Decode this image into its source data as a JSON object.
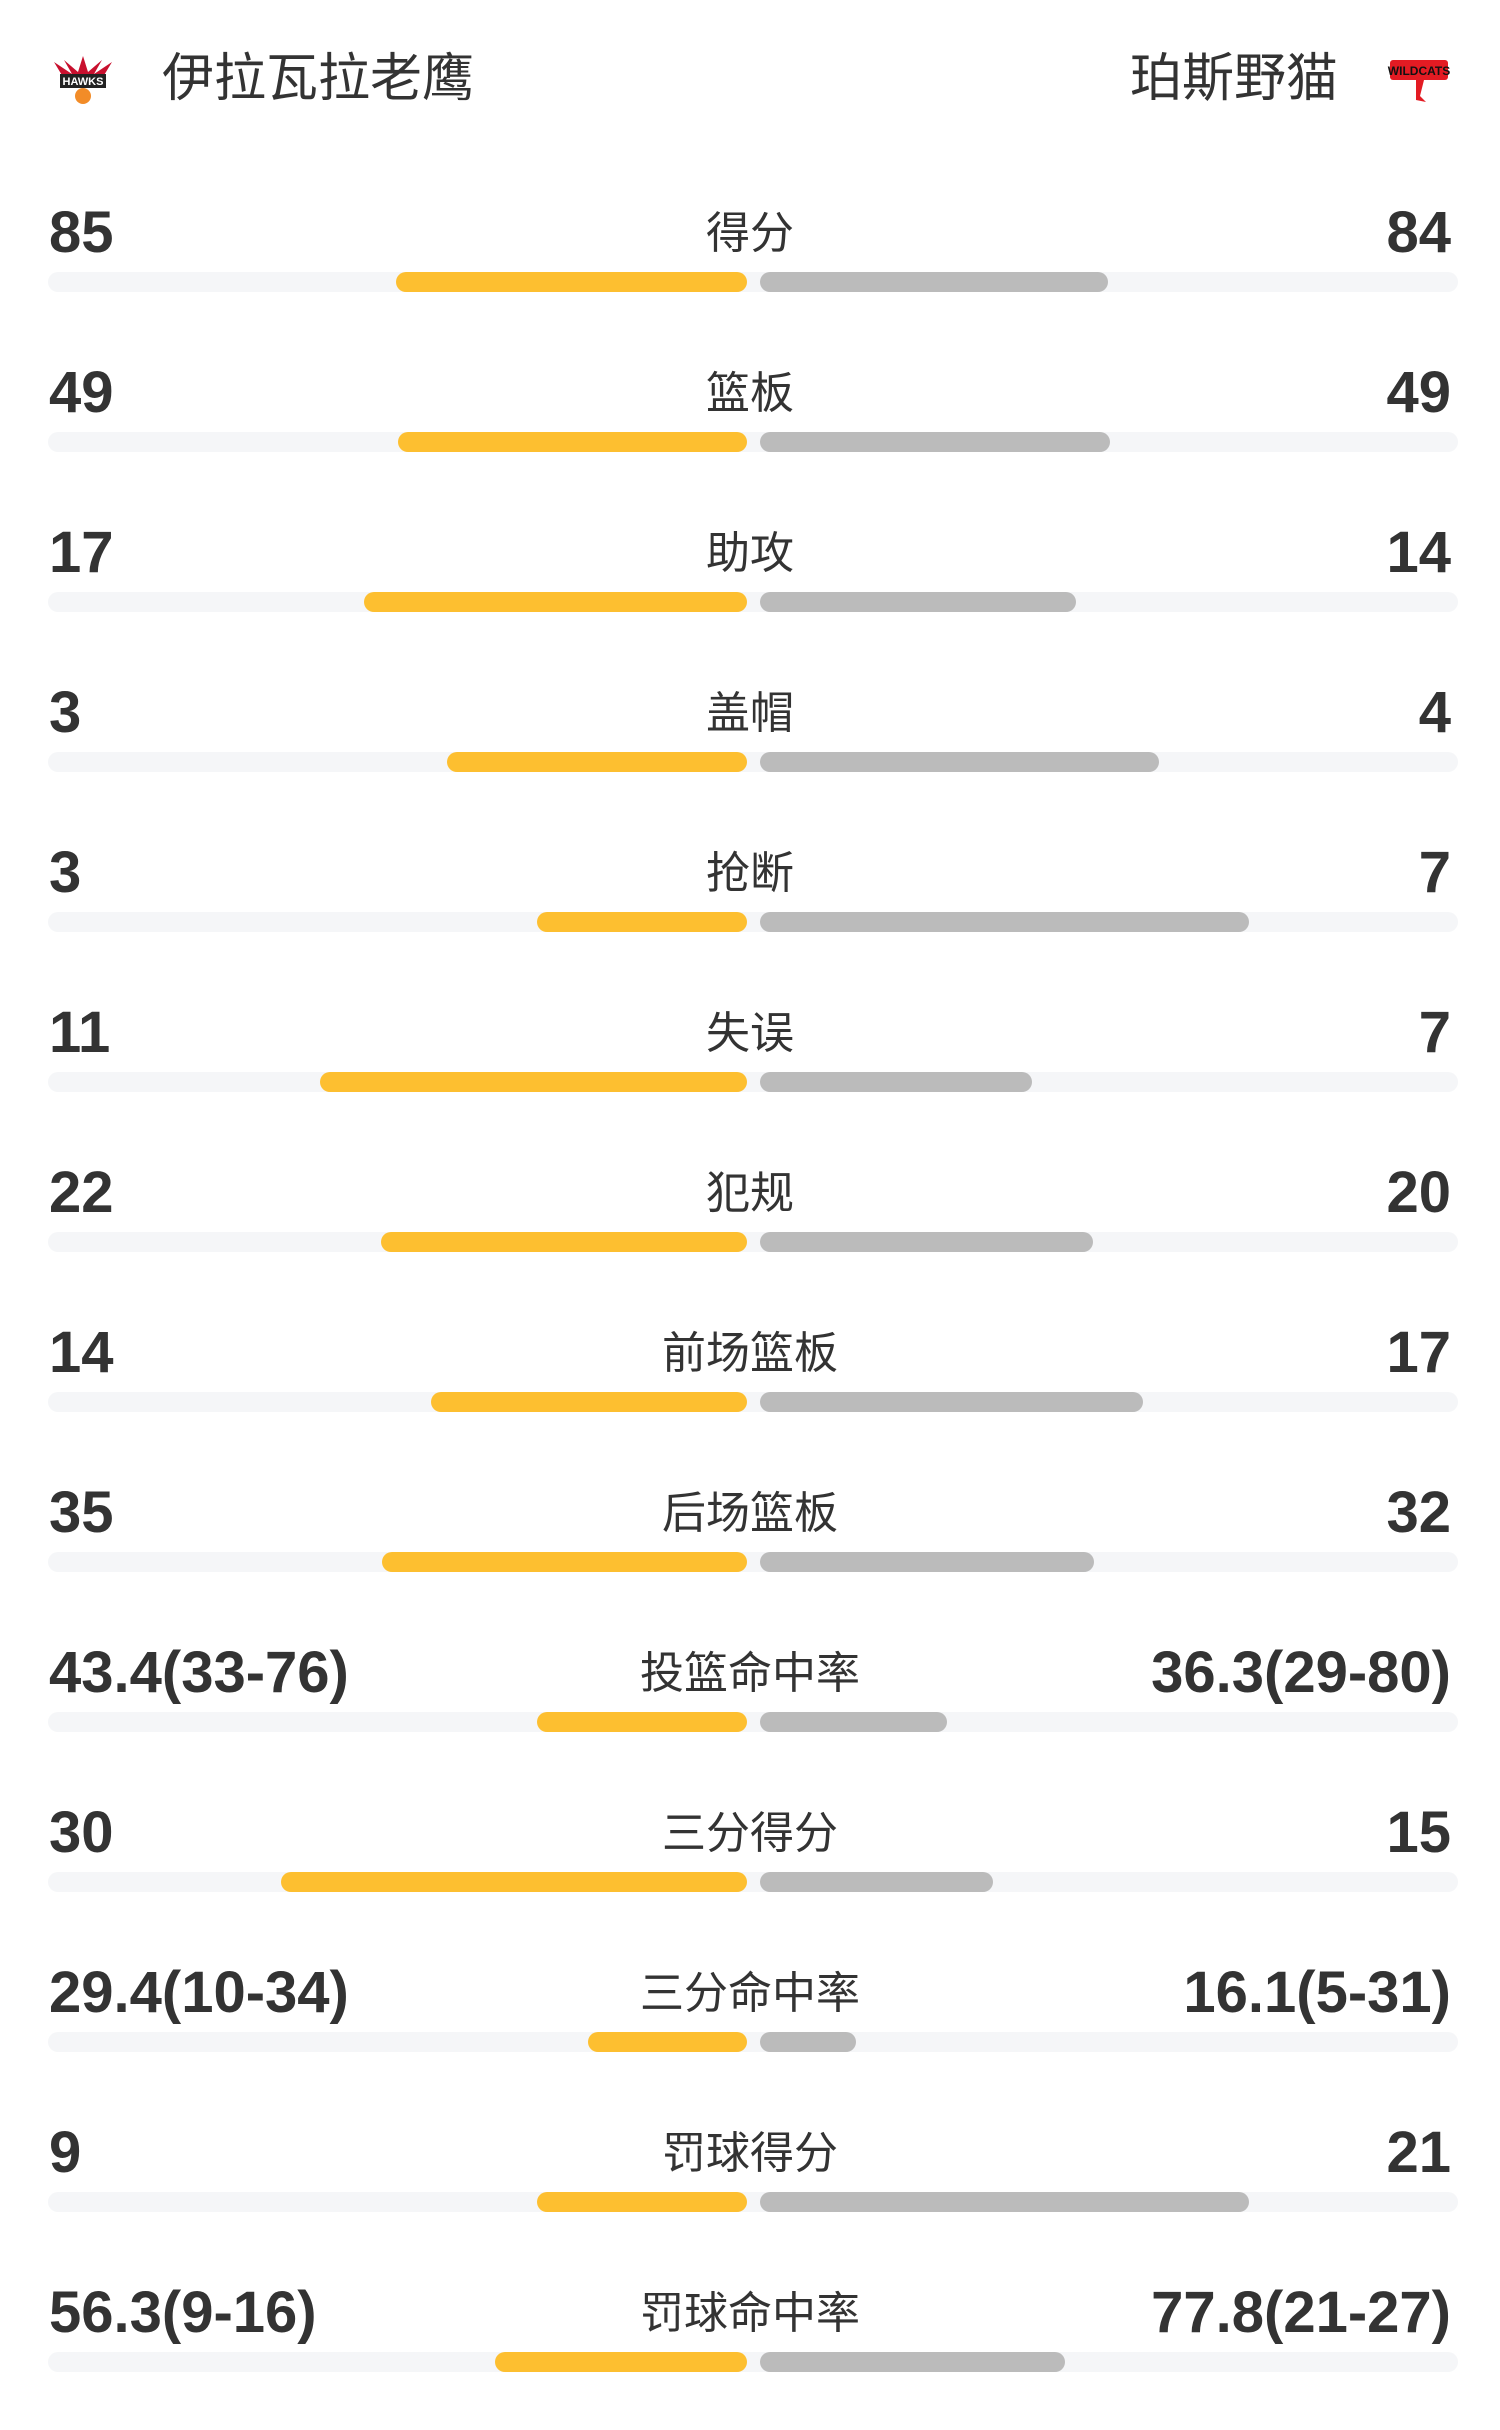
{
  "header": {
    "home_team": "伊拉瓦拉老鹰",
    "away_team": "珀斯野猫",
    "home_logo_text": "HAWKS",
    "away_logo_text": "WILDCATS"
  },
  "colors": {
    "home_bar": "#FDBF30",
    "away_bar": "#BBBBBB",
    "track": "#F5F6F8",
    "text": "#333333"
  },
  "stats": [
    {
      "label": "得分",
      "home": "85",
      "away": "84",
      "home_fill": 0.502,
      "away_fill": 0.498
    },
    {
      "label": "篮板",
      "home": "49",
      "away": "49",
      "home_fill": 0.5,
      "away_fill": 0.5
    },
    {
      "label": "助攻",
      "home": "17",
      "away": "14",
      "home_fill": 0.548,
      "away_fill": 0.452
    },
    {
      "label": "盖帽",
      "home": "3",
      "away": "4",
      "home_fill": 0.429,
      "away_fill": 0.571
    },
    {
      "label": "抢断",
      "home": "3",
      "away": "7",
      "home_fill": 0.3,
      "away_fill": 0.7
    },
    {
      "label": "失误",
      "home": "11",
      "away": "7",
      "home_fill": 0.611,
      "away_fill": 0.389
    },
    {
      "label": "犯规",
      "home": "22",
      "away": "20",
      "home_fill": 0.524,
      "away_fill": 0.476
    },
    {
      "label": "前场篮板",
      "home": "14",
      "away": "17",
      "home_fill": 0.452,
      "away_fill": 0.548
    },
    {
      "label": "后场篮板",
      "home": "35",
      "away": "32",
      "home_fill": 0.522,
      "away_fill": 0.478
    },
    {
      "label": "投篮命中率",
      "home": "43.4(33-76)",
      "away": "36.3(29-80)",
      "home_fill": 0.3,
      "away_fill": 0.267
    },
    {
      "label": "三分得分",
      "home": "30",
      "away": "15",
      "home_fill": 0.667,
      "away_fill": 0.333
    },
    {
      "label": "三分命中率",
      "home": "29.4(10-34)",
      "away": "16.1(5-31)",
      "home_fill": 0.227,
      "away_fill": 0.137
    },
    {
      "label": "罚球得分",
      "home": "9",
      "away": "21",
      "home_fill": 0.3,
      "away_fill": 0.7
    },
    {
      "label": "罚球命中率",
      "home": "56.3(9-16)",
      "away": "77.8(21-27)",
      "home_fill": 0.36,
      "away_fill": 0.436
    }
  ]
}
